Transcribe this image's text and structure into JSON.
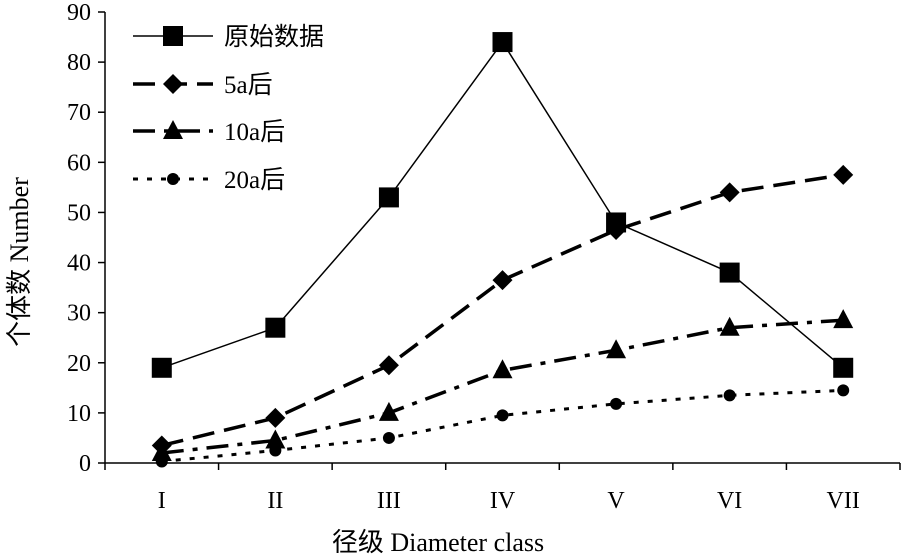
{
  "chart_data": {
    "type": "line",
    "title": "",
    "xlabel": "径级 Diameter class",
    "ylabel": "个体数 Number",
    "categories": [
      "I",
      "II",
      "III",
      "IV",
      "V",
      "VI",
      "VII"
    ],
    "ylim": [
      0,
      90
    ],
    "yticks": [
      0,
      10,
      20,
      30,
      40,
      50,
      60,
      70,
      80,
      90
    ],
    "grid": false,
    "legend_position": "top-left",
    "series": [
      {
        "name": "原始数据",
        "marker": "square",
        "line_style": "solid",
        "values": [
          19,
          27,
          53,
          84,
          48,
          38,
          19
        ]
      },
      {
        "name": "5a后",
        "marker": "diamond",
        "line_style": "dashed",
        "values": [
          3.5,
          9,
          19.5,
          36.5,
          46.5,
          54,
          57.5
        ]
      },
      {
        "name": "10a后",
        "marker": "triangle",
        "line_style": "dash-dot",
        "values": [
          2,
          4.5,
          10,
          18.5,
          22.5,
          27,
          28.5
        ]
      },
      {
        "name": "20a后",
        "marker": "circle",
        "line_style": "dotted",
        "values": [
          0.3,
          2.5,
          5,
          9.5,
          11.8,
          13.5,
          14.5
        ]
      }
    ]
  }
}
